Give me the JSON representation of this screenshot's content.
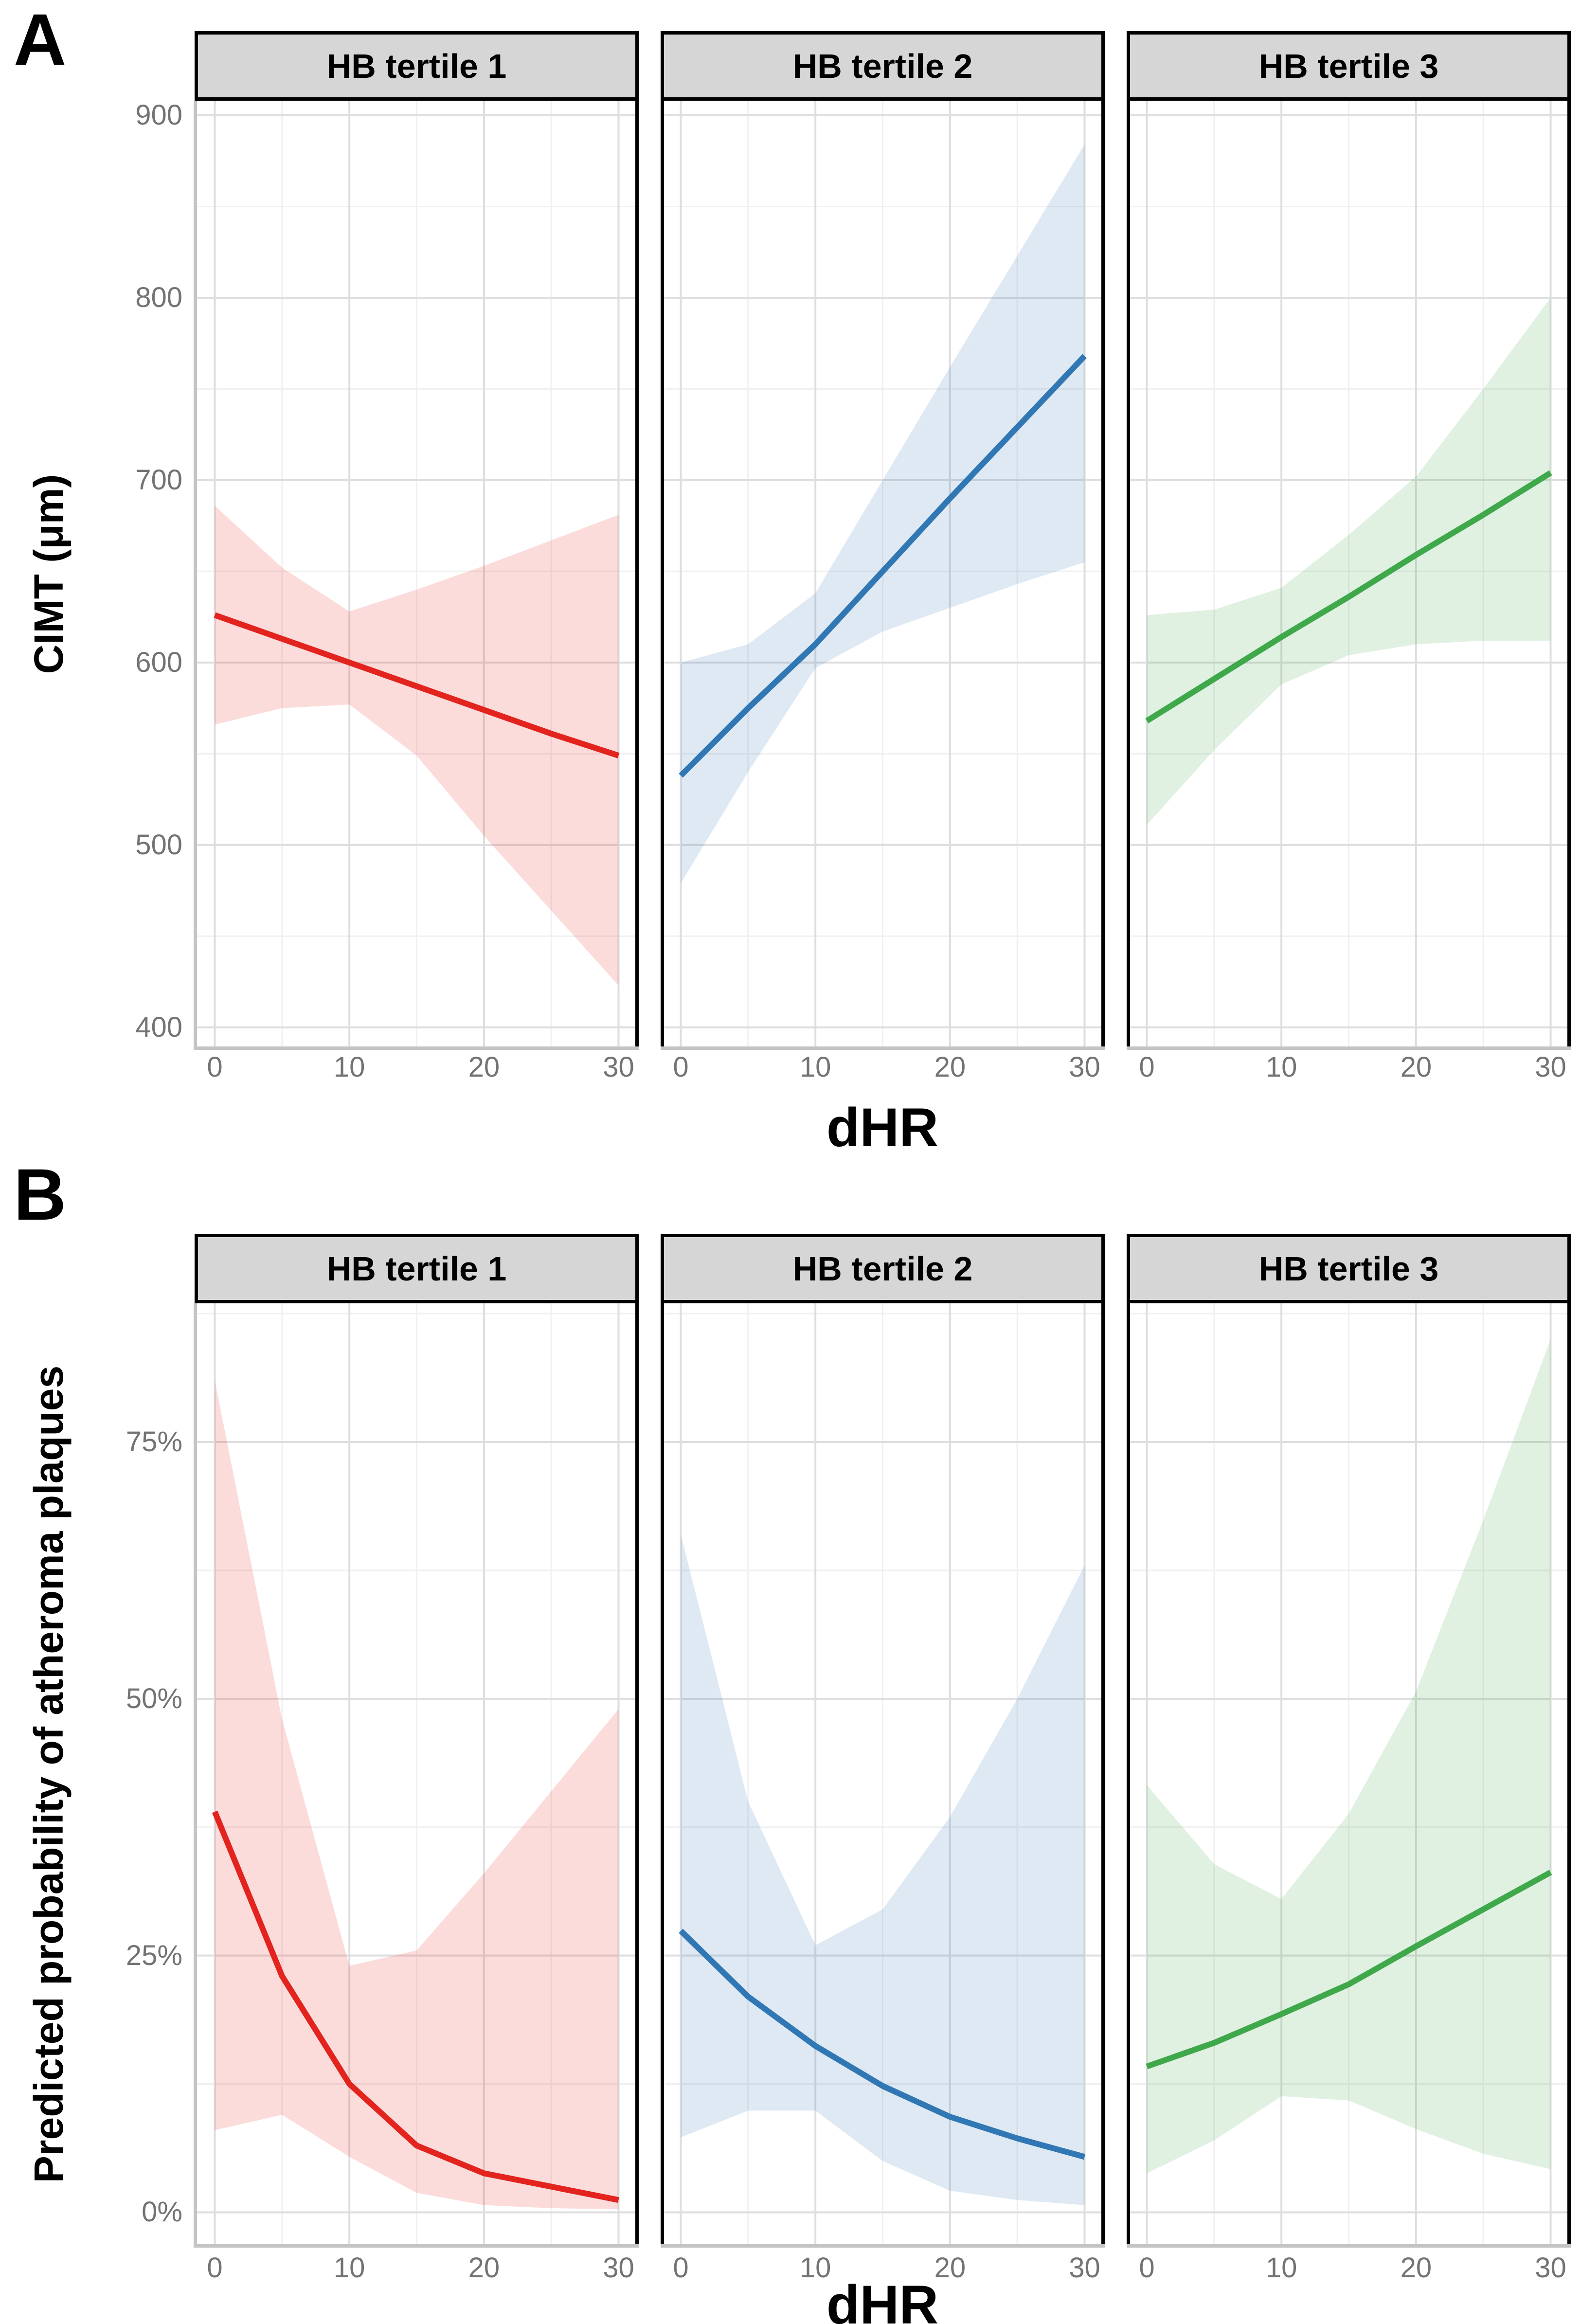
{
  "figure_type": "faceted-regression-figure",
  "theme": {
    "background": "#FFFFFF",
    "strip_background": "#D6D6D6",
    "strip_border": "#000000",
    "facet_divider": "#000000",
    "grid_major": "#DEDEDE",
    "grid_minor": "#F0F0F0",
    "axis_line": "#C4C4C4",
    "tick_text": "#737373",
    "red": "#E2231E",
    "blue": "#3077B4",
    "green": "#3FA84B"
  },
  "chart_data": [
    {
      "type": "line",
      "panel_label": "A",
      "ylabel": "CIMT (μm)",
      "xlabel": "dHR",
      "x": [
        0,
        5,
        10,
        15,
        20,
        25,
        30
      ],
      "xlim": [
        -1.5,
        31.5
      ],
      "ylim": [
        389,
        908
      ],
      "xticks": {
        "values": [
          0,
          10,
          20,
          30
        ],
        "labels": [
          "0",
          "10",
          "20",
          "30"
        ]
      },
      "yticks": {
        "values": [
          400,
          500,
          600,
          700,
          800,
          900
        ],
        "labels": [
          "400",
          "500",
          "600",
          "700",
          "800",
          "900"
        ]
      },
      "x_minor": [
        5,
        15,
        25
      ],
      "y_minor": [
        450,
        550,
        650,
        750,
        850
      ],
      "grid": true,
      "legend": "none",
      "facets": [
        {
          "label": "HB tertile 1",
          "line_color": "#E2231E",
          "ribbon_color": "rgba(228,35,30,0.16)",
          "line": [
            626,
            613,
            600,
            587,
            574,
            561,
            549
          ],
          "ci_upper": [
            686,
            652,
            628,
            640,
            653,
            667,
            681
          ],
          "ci_lower": [
            566,
            575,
            577,
            549,
            505,
            464,
            423
          ]
        },
        {
          "label": "HB tertile 2",
          "line_color": "#3077B4",
          "ribbon_color": "rgba(48,119,180,0.16)",
          "line": [
            538,
            575,
            610,
            650,
            690,
            729,
            768
          ],
          "ci_upper": [
            600,
            610,
            638,
            700,
            762,
            823,
            884
          ],
          "ci_lower": [
            479,
            540,
            597,
            617,
            630,
            643,
            655
          ]
        },
        {
          "label": "HB tertile 3",
          "line_color": "#3FA84B",
          "ribbon_color": "rgba(63,168,75,0.16)",
          "line": [
            568,
            591,
            614,
            636,
            659,
            681,
            704
          ],
          "ci_upper": [
            626,
            629,
            641,
            670,
            702,
            750,
            800
          ],
          "ci_lower": [
            511,
            552,
            588,
            604,
            610,
            612,
            612
          ]
        }
      ]
    },
    {
      "type": "line",
      "panel_label": "B",
      "ylabel": "Predicted probability of atheroma plaques",
      "xlabel": "dHR",
      "x": [
        0,
        5,
        10,
        15,
        20,
        25,
        30
      ],
      "xlim": [
        -1.5,
        31.5
      ],
      "ylim": [
        -3.2,
        88.5
      ],
      "xticks": {
        "values": [
          0,
          10,
          20,
          30
        ],
        "labels": [
          "0",
          "10",
          "20",
          "30"
        ]
      },
      "yticks": {
        "values": [
          0,
          25,
          50,
          75
        ],
        "labels": [
          "0%",
          "25%",
          "50%",
          "75%"
        ]
      },
      "x_minor": [
        5,
        15,
        25
      ],
      "y_minor": [
        12.5,
        37.5,
        62.5,
        87.5
      ],
      "grid": true,
      "legend": "none",
      "facets": [
        {
          "label": "HB tertile 1",
          "line_color": "#E2231E",
          "ribbon_color": "rgba(228,35,30,0.16)",
          "line": [
            39,
            23,
            12.5,
            6.5,
            3.8,
            2.5,
            1.2
          ],
          "ci_upper": [
            81,
            48,
            24,
            25.5,
            33,
            41,
            49
          ],
          "ci_lower": [
            8,
            9.5,
            5.4,
            1.9,
            0.7,
            0.4,
            0.3
          ]
        },
        {
          "label": "HB tertile 2",
          "line_color": "#3077B4",
          "ribbon_color": "rgba(48,119,180,0.16)",
          "line": [
            27.4,
            21,
            16.2,
            12.3,
            9.3,
            7.2,
            5.4
          ],
          "ci_upper": [
            66,
            40,
            26,
            29.5,
            38.5,
            50,
            63
          ],
          "ci_lower": [
            7.3,
            9.9,
            9.9,
            5,
            2.1,
            1.2,
            0.7
          ]
        },
        {
          "label": "HB tertile 3",
          "line_color": "#3FA84B",
          "ribbon_color": "rgba(63,168,75,0.16)",
          "line": [
            14.2,
            16.5,
            19.3,
            22.2,
            25.9,
            29.5,
            33.1
          ],
          "ci_upper": [
            41.6,
            33.9,
            30.5,
            38.8,
            50.7,
            67.4,
            85
          ],
          "ci_lower": [
            3.8,
            7,
            11.3,
            10.9,
            8.1,
            5.7,
            4.2
          ]
        }
      ]
    }
  ]
}
